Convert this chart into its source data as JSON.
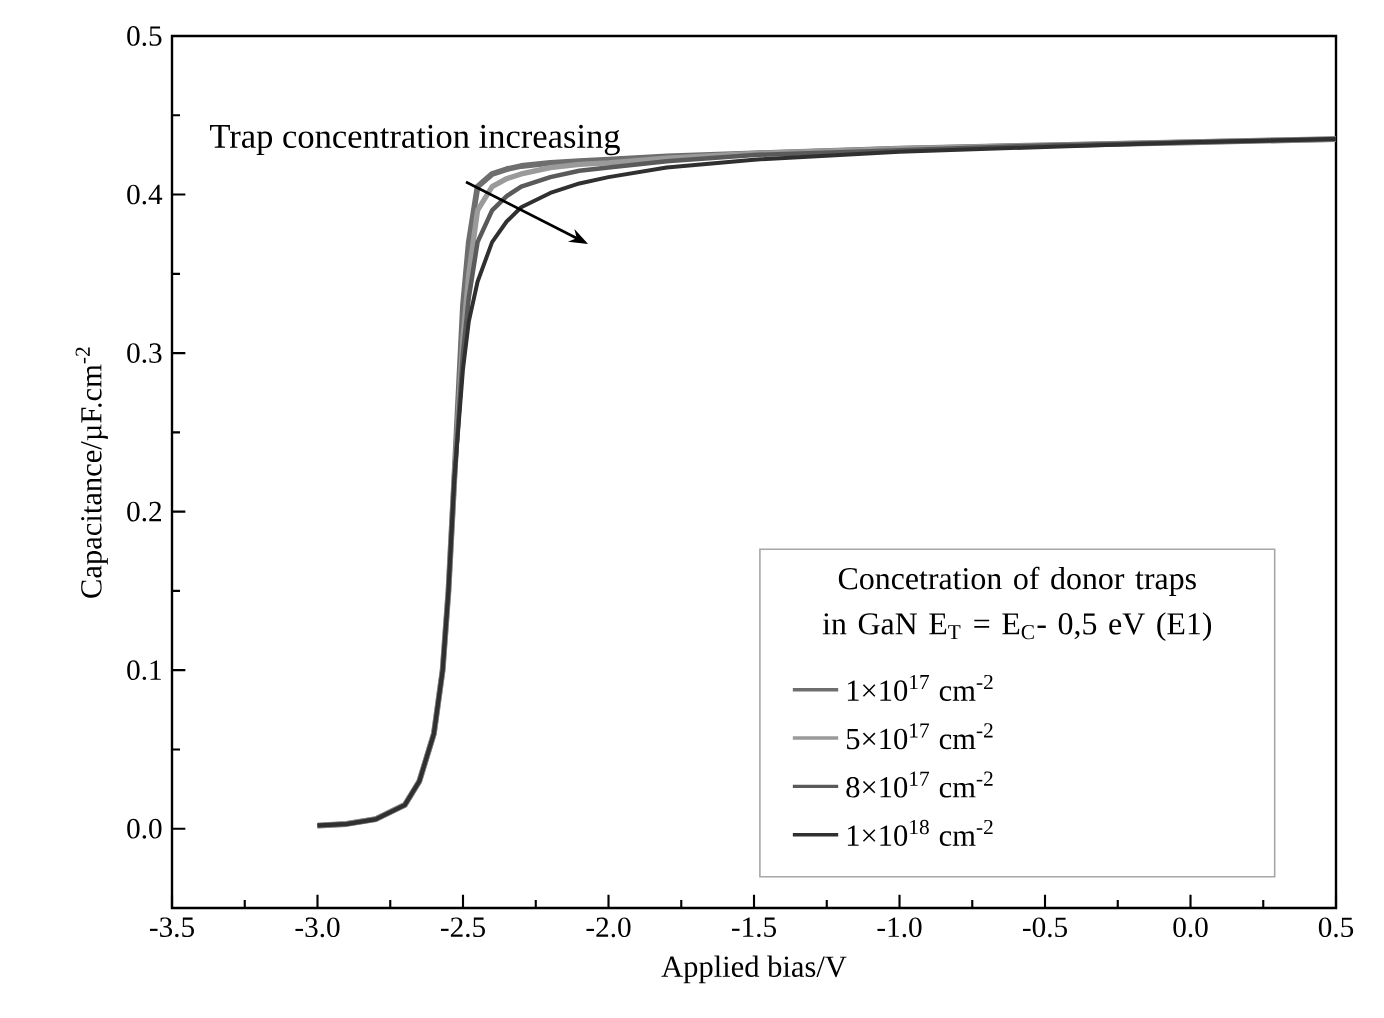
{
  "chart_data": {
    "type": "line",
    "xlabel": "Applied bias/V",
    "ylabel": "Capacitance/µF.cm$^{-2}$",
    "legend_title": "Concetration of donor traps in GaN E$_{T}$ = E$_{C}$- 0,5 eV (E1)",
    "annotations": [
      "Trap concentration increasing"
    ],
    "x": [
      -3.0,
      -2.9,
      -2.8,
      -2.7,
      -2.65,
      -2.6,
      -2.57,
      -2.55,
      -2.53,
      -2.5,
      -2.48,
      -2.45,
      -2.4,
      -2.35,
      -2.3,
      -2.2,
      -2.1,
      -2.0,
      -1.8,
      -1.5,
      -1.0,
      -0.5,
      0.0,
      0.5
    ],
    "series": [
      {
        "name": "1×10$^{17}$ cm$^{-2}$",
        "color": "#6e6e6e",
        "values": [
          0.002,
          0.003,
          0.006,
          0.015,
          0.03,
          0.06,
          0.1,
          0.15,
          0.22,
          0.33,
          0.37,
          0.405,
          0.413,
          0.416,
          0.418,
          0.42,
          0.421,
          0.422,
          0.424,
          0.426,
          0.429,
          0.431,
          0.433,
          0.435
        ]
      },
      {
        "name": "5×10$^{17}$ cm$^{-2}$",
        "color": "#9a9a9a",
        "values": [
          0.002,
          0.003,
          0.006,
          0.015,
          0.03,
          0.06,
          0.1,
          0.15,
          0.22,
          0.31,
          0.35,
          0.39,
          0.405,
          0.41,
          0.413,
          0.417,
          0.419,
          0.42,
          0.423,
          0.426,
          0.429,
          0.431,
          0.433,
          0.435
        ]
      },
      {
        "name": "8×10$^{17}$ cm$^{-2}$",
        "color": "#5a5a5a",
        "values": [
          0.002,
          0.003,
          0.006,
          0.015,
          0.03,
          0.06,
          0.1,
          0.15,
          0.22,
          0.3,
          0.335,
          0.37,
          0.39,
          0.399,
          0.405,
          0.411,
          0.415,
          0.417,
          0.421,
          0.425,
          0.428,
          0.431,
          0.433,
          0.435
        ]
      },
      {
        "name": "1×10$^{18}$ cm$^{-2}$",
        "color": "#303030",
        "values": [
          0.002,
          0.003,
          0.006,
          0.015,
          0.03,
          0.06,
          0.1,
          0.15,
          0.22,
          0.29,
          0.32,
          0.345,
          0.37,
          0.383,
          0.392,
          0.401,
          0.407,
          0.411,
          0.417,
          0.422,
          0.427,
          0.43,
          0.433,
          0.435
        ]
      }
    ],
    "xlim": [
      -3.5,
      0.5
    ],
    "ylim": [
      -0.05,
      0.5
    ],
    "xticks": [
      {
        "value": -3.5,
        "label": "-3.5"
      },
      {
        "value": -3.0,
        "label": "-3.0"
      },
      {
        "value": -2.5,
        "label": "-2.5"
      },
      {
        "value": -2.0,
        "label": "-2.0"
      },
      {
        "value": -1.5,
        "label": "-1.5"
      },
      {
        "value": -1.0,
        "label": "-1.0"
      },
      {
        "value": -0.5,
        "label": "-0.5"
      },
      {
        "value": 0.0,
        "label": "0.0"
      },
      {
        "value": 0.5,
        "label": "0.5"
      }
    ],
    "yticks": [
      {
        "value": 0.0,
        "label": "0.0"
      },
      {
        "value": 0.1,
        "label": "0.1"
      },
      {
        "value": 0.2,
        "label": "0.2"
      },
      {
        "value": 0.3,
        "label": "0.3"
      },
      {
        "value": 0.4,
        "label": "0.4"
      },
      {
        "value": 0.5,
        "label": "0.5"
      }
    ],
    "legend": "bottom right",
    "grid": false,
    "marker": "none",
    "line_style": "solid"
  }
}
